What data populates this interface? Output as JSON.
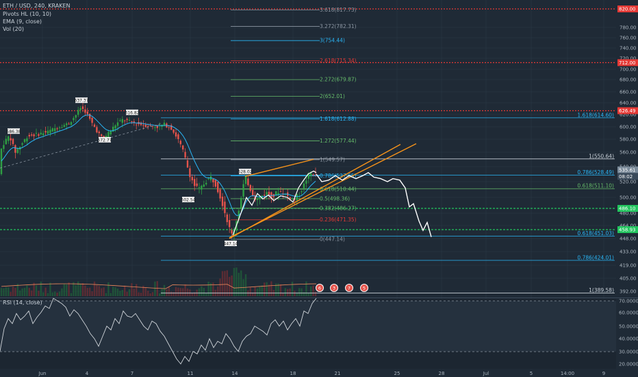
{
  "header": {
    "symbol_line": "ETH / USD, 240, KRAKEN",
    "indicators": [
      "Pivots HL (10, 10)",
      "EMA (9, close)",
      "Vol (20)"
    ],
    "rsi_label": "RSI (14, close)"
  },
  "colors": {
    "background": "#1f2a36",
    "grid": "#2b3947",
    "up_candle": "#2ea043",
    "down_candle": "#e5534b",
    "ema": "#29b6f6",
    "trendline": "#f7931a",
    "projection": "#ffffff",
    "red_level": "#e53935",
    "green_level": "#22c55e",
    "rsi_line": "#d0d5da",
    "volume_ma": "#f08a5d"
  },
  "chart_data": {
    "type": "candlestick",
    "price_axis": {
      "ticks": [
        "780.00",
        "760.00",
        "740.00",
        "720.00",
        "700.00",
        "680.00",
        "660.00",
        "640.00",
        "620.00",
        "600.00",
        "580.00",
        "560.00",
        "540.00",
        "520.00",
        "500.00",
        "480.00",
        "464.00",
        "448.00",
        "433.00",
        "419.00",
        "405.00",
        "392.00"
      ],
      "tags": [
        {
          "label": "820.00",
          "value": 820.0,
          "color": "#e53935"
        },
        {
          "label": "712.00",
          "value": 712.0,
          "color": "#e53935"
        },
        {
          "label": "626.49",
          "value": 626.49,
          "color": "#e53935"
        },
        {
          "label": "535.61",
          "value": 535.61,
          "color": "#7a8a99"
        },
        {
          "label": "08:02",
          "value": 527.0,
          "color": "#3a4a5a"
        },
        {
          "label": "486.10",
          "value": 486.1,
          "color": "#22c55e"
        },
        {
          "label": "458.93",
          "value": 458.93,
          "color": "#22c55e"
        }
      ]
    },
    "time_axis": {
      "labels": [
        {
          "t": "Jun",
          "x": 62
        },
        {
          "t": "4",
          "x": 127
        },
        {
          "t": "7",
          "x": 193
        },
        {
          "t": "11",
          "x": 278
        },
        {
          "t": "14",
          "x": 343
        },
        {
          "t": "18",
          "x": 428
        },
        {
          "t": "21",
          "x": 493
        },
        {
          "t": "25",
          "x": 580
        },
        {
          "t": "28",
          "x": 645
        },
        {
          "t": "Jul",
          "x": 710
        },
        {
          "t": "5",
          "x": 776
        },
        {
          "t": "14:00",
          "x": 829
        },
        {
          "t": "9",
          "x": 882
        }
      ]
    },
    "horizontal_levels": [
      {
        "value": 820.0,
        "color": "#e53935",
        "style": "dotted"
      },
      {
        "value": 712.0,
        "color": "#e53935",
        "style": "dotted"
      },
      {
        "value": 626.49,
        "color": "#e53935",
        "style": "dotted"
      },
      {
        "value": 486.1,
        "color": "#22c55e",
        "style": "dashed"
      },
      {
        "value": 458.93,
        "color": "#22c55e",
        "style": "dashed"
      }
    ],
    "fib_extension": [
      {
        "label": "3.618(817.73)",
        "value": 817.73,
        "color": "#8b95a1"
      },
      {
        "label": "3.272(782.31)",
        "value": 782.31,
        "color": "#8b95a1"
      },
      {
        "label": "3(754.44)",
        "value": 754.44,
        "color": "#29b6f6"
      },
      {
        "label": "2.618(715.34)",
        "value": 715.34,
        "color": "#e53935"
      },
      {
        "label": "2.272(679.87)",
        "value": 679.87,
        "color": "#66bb6a"
      },
      {
        "label": "2(652.01)",
        "value": 652.01,
        "color": "#66bb6a"
      },
      {
        "label": "1.618(612.88)",
        "value": 612.88,
        "color": "#29b6f6"
      },
      {
        "label": "1.272(577.44)",
        "value": 577.44,
        "color": "#66bb6a"
      },
      {
        "label": "1(549.57)",
        "value": 549.57,
        "color": "#8b95a1"
      },
      {
        "label": "0.786(527.65)",
        "value": 527.65,
        "color": "#29b6f6"
      },
      {
        "label": "0.618(510.44)",
        "value": 510.44,
        "color": "#66bb6a"
      },
      {
        "label": "0.5(498.36)",
        "value": 498.36,
        "color": "#66bb6a"
      },
      {
        "label": "0.382(486.27)",
        "value": 486.27,
        "color": "#66bb6a"
      },
      {
        "label": "0.236(471.35)",
        "value": 471.35,
        "color": "#e53935"
      },
      {
        "label": "0(447.14)",
        "value": 447.14,
        "color": "#8b95a1"
      }
    ],
    "fib_retracement": [
      {
        "label": "1.618(614.60)",
        "value": 614.6,
        "color": "#29b6f6"
      },
      {
        "label": "1(550.64)",
        "value": 550.64,
        "color": "#c9d1d9"
      },
      {
        "label": "0.786(528.49)",
        "value": 528.49,
        "color": "#29b6f6"
      },
      {
        "label": "0.618(511.10)",
        "value": 511.1,
        "color": "#66bb6a"
      },
      {
        "label": "0.618(451.03)",
        "value": 451.03,
        "color": "#29b6f6"
      },
      {
        "label": "0.786(424.01)",
        "value": 424.01,
        "color": "#29b6f6"
      },
      {
        "label": "1(389.58)",
        "value": 389.58,
        "color": "#c9d1d9"
      }
    ],
    "pivot_labels": [
      {
        "label": "586.38",
        "value": 586.38
      },
      {
        "label": "637.37",
        "value": 637.37
      },
      {
        "label": "572.77",
        "value": 572.77
      },
      {
        "label": "616.82",
        "value": 616.82
      },
      {
        "label": "502.54",
        "value": 502.54
      },
      {
        "label": "528.02",
        "value": 528.02
      },
      {
        "label": "447.14",
        "value": 447.14
      }
    ],
    "event_markers": [
      "6",
      "3",
      "7",
      "5"
    ],
    "rsi": {
      "ticks": [
        "70.0000",
        "60.0000",
        "50.0000",
        "40.0000",
        "30.0000",
        "20.0000"
      ],
      "overbought": 70,
      "oversold": 30,
      "values": [
        30,
        48,
        56,
        52,
        60,
        55,
        58,
        62,
        52,
        57,
        61,
        66,
        64,
        72,
        70,
        68,
        65,
        58,
        63,
        60,
        55,
        50,
        44,
        40,
        34,
        42,
        50,
        47,
        56,
        52,
        62,
        58,
        57,
        60,
        55,
        50,
        47,
        54,
        52,
        46,
        42,
        36,
        30,
        24,
        20,
        26,
        22,
        30,
        28,
        35,
        31,
        40,
        33,
        38,
        36,
        44,
        40,
        34,
        30,
        38,
        42,
        44,
        50,
        48,
        46,
        43,
        52,
        55,
        50,
        54,
        47,
        52,
        56,
        50,
        62,
        60,
        68,
        72
      ]
    }
  }
}
